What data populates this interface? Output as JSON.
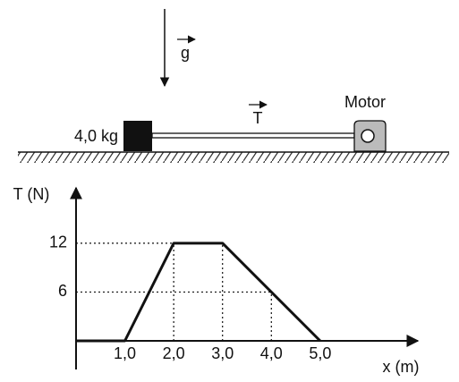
{
  "diagram": {
    "gravity_label": "g",
    "mass_label": "4,0 kg",
    "tension_label": "T",
    "motor_label": "Motor"
  },
  "chart_data": {
    "type": "line",
    "x_label": "x (m)",
    "y_label": "T (N)",
    "x": [
      0,
      1,
      2,
      3,
      4,
      5
    ],
    "series": [
      {
        "color": "#111111",
        "values": [
          0,
          0,
          12,
          12,
          6,
          0
        ]
      }
    ],
    "xlim": [
      0,
      7
    ],
    "ylim": [
      0,
      18.8
    ],
    "xticks": [
      {
        "value": 1,
        "label": "1,0"
      },
      {
        "value": 2,
        "label": "2,0"
      },
      {
        "value": 3,
        "label": "3,0"
      },
      {
        "value": 4,
        "label": "4,0"
      },
      {
        "value": 5,
        "label": "5,0"
      }
    ],
    "yticks": [
      6,
      12
    ],
    "grid": true
  }
}
